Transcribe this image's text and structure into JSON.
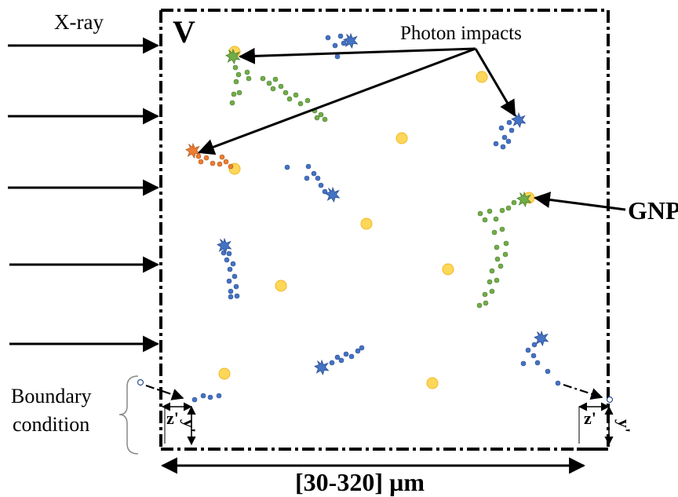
{
  "labels": {
    "xray": "X-ray",
    "volume": "V",
    "photon_impacts": "Photon impacts",
    "gnp": "GNP",
    "boundary_line1": "Boundary",
    "boundary_line2": "condition",
    "z_left": "z'",
    "y_left": "y'",
    "z_right": "z'",
    "y_right": "y'",
    "width_range": "[30-320] µm"
  },
  "colors": {
    "gnp_gold": "#fdd75a",
    "gnp_edge": "#f2b821",
    "track_blue": "#4472c4",
    "track_green": "#70ad47",
    "track_orange": "#ed7d31",
    "outline": "#000000"
  },
  "icons": [
    "arrow-right-icon",
    "starburst-icon",
    "dot-icon"
  ]
}
